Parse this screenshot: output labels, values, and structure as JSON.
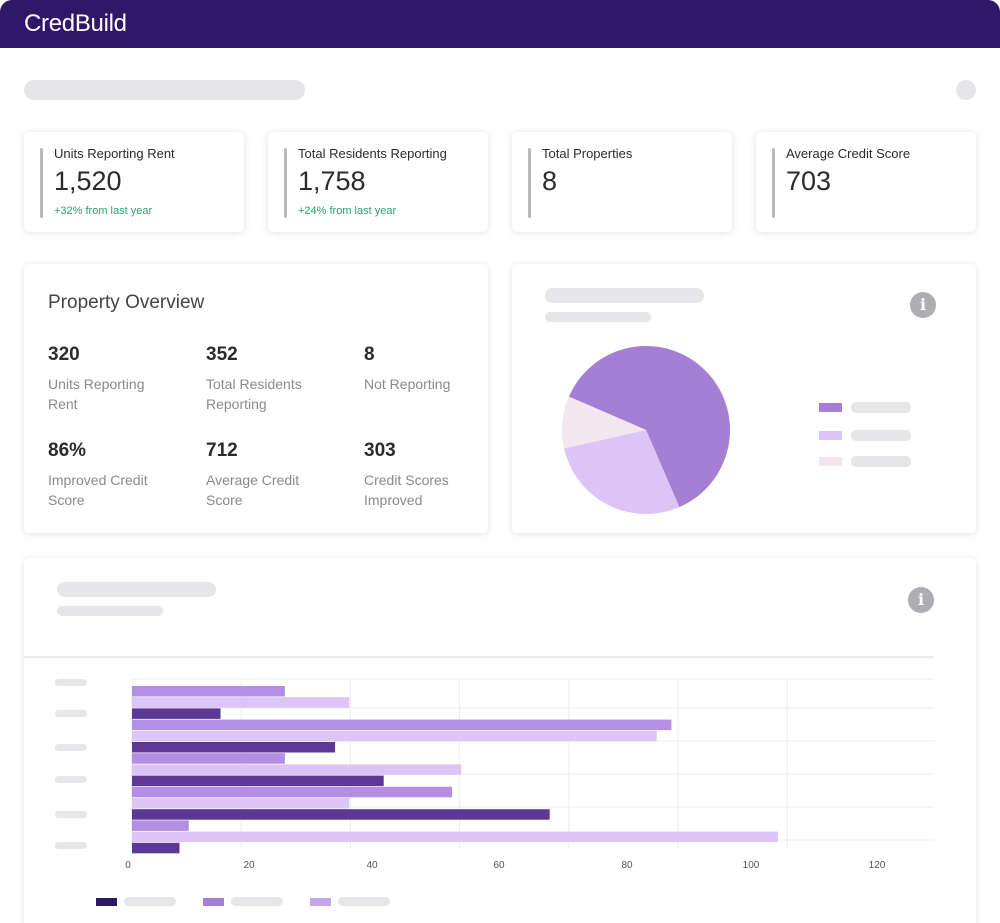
{
  "header": {
    "brand": "CredBuild"
  },
  "stats": [
    {
      "label": "Units Reporting Rent",
      "value": "1,520",
      "change": "+32% from last year"
    },
    {
      "label": "Total Residents Reporting",
      "value": "1,758",
      "change": "+24% from last year"
    },
    {
      "label": "Total Properties",
      "value": "8",
      "change": ""
    },
    {
      "label": "Average Credit Score",
      "value": "703",
      "change": ""
    }
  ],
  "property_overview": {
    "title": "Property Overview",
    "items": [
      {
        "value": "320",
        "label": "Units Reporting Rent"
      },
      {
        "value": "352",
        "label": "Total Residents Reporting"
      },
      {
        "value": "8",
        "label": "Not Reporting"
      },
      {
        "value": "86%",
        "label": "Improved Credit Score"
      },
      {
        "value": "712",
        "label": "Average Credit Score"
      },
      {
        "value": "303",
        "label": "Credit Scores Improved"
      }
    ]
  },
  "icons": {
    "info": "i"
  },
  "colors": {
    "header": "#2f1868",
    "series_dark": "#2f1868",
    "series_mid": "#a57fd4",
    "series_light": "#dcc5f6",
    "pie_pink": "#f3e6ef",
    "positive": "#28a46b"
  },
  "chart_data": [
    {
      "type": "pie",
      "title": "",
      "legend": "right",
      "slices": [
        {
          "name": "",
          "value": 62,
          "color": "#a57fd4"
        },
        {
          "name": "",
          "value": 28,
          "color": "#dcc5f6"
        },
        {
          "name": "",
          "value": 10,
          "color": "#f3e6ef"
        }
      ]
    },
    {
      "type": "bar",
      "orientation": "horizontal",
      "title": "",
      "xlabel": "",
      "ylabel": "",
      "xlim": [
        0,
        120
      ],
      "xticks": [
        "0",
        "20",
        "40",
        "60",
        "80",
        "100",
        "120"
      ],
      "grid": true,
      "legend": "bottom-left",
      "categories": [
        "",
        "",
        "",
        "",
        "",
        ""
      ],
      "bars": [
        {
          "series": 1,
          "value": 28
        },
        {
          "series": 2,
          "value": 39.8
        },
        {
          "series": 0,
          "value": 16.2
        },
        {
          "series": 1,
          "value": 98.8
        },
        {
          "series": 2,
          "value": 96.1
        },
        {
          "series": 0,
          "value": 37.2
        },
        {
          "series": 1,
          "value": 28
        },
        {
          "series": 2,
          "value": 60.3
        },
        {
          "series": 0,
          "value": 46.1
        },
        {
          "series": 1,
          "value": 58.6
        },
        {
          "series": 2,
          "value": 39.8
        },
        {
          "series": 0,
          "value": 76.5
        },
        {
          "series": 1,
          "value": 10.4
        },
        {
          "series": 2,
          "value": 118.3
        },
        {
          "series": 0,
          "value": 8.7
        }
      ],
      "series_colors": [
        "#5b3796",
        "#b48ee3",
        "#dcc5f6"
      ],
      "legend_colors": [
        "#2f1868",
        "#a57fd4",
        "#c7a3ee"
      ]
    }
  ]
}
